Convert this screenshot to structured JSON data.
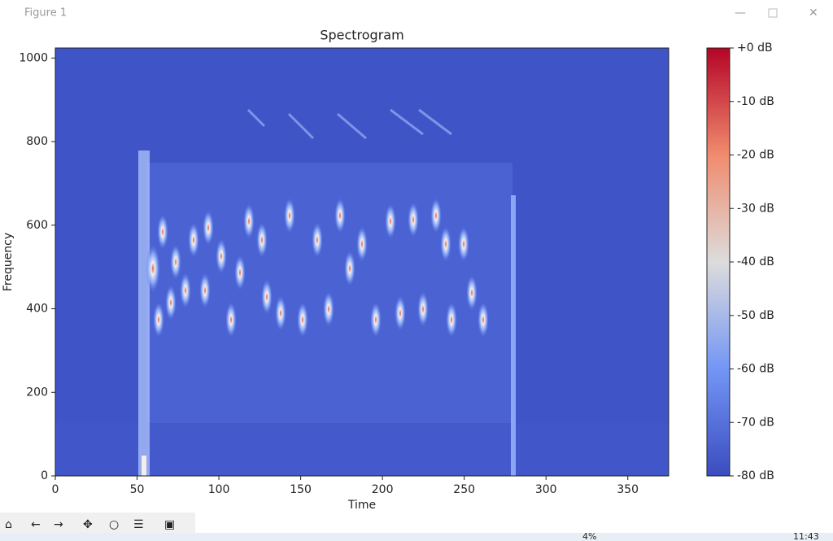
{
  "window": {
    "title": "Figure 1"
  },
  "taskbar": {
    "battery": "4%",
    "clock": "11:43"
  },
  "chart_data": {
    "type": "heatmap",
    "title": "Spectrogram",
    "x_label": "Time",
    "y_label": "Frequency",
    "xlim": [
      0,
      375
    ],
    "xticks": [
      0,
      50,
      100,
      150,
      200,
      250,
      300,
      350
    ],
    "ylim": [
      0,
      1024
    ],
    "yticks": [
      0,
      200,
      400,
      600,
      800,
      1000
    ],
    "colormap": "coolwarm",
    "colorbar": {
      "lim": [
        -80,
        0
      ],
      "ticks": [
        {
          "value": 0,
          "label": "+0 dB"
        },
        {
          "value": -10,
          "label": "-10 dB"
        },
        {
          "value": -20,
          "label": "-20 dB"
        },
        {
          "value": -30,
          "label": "-30 dB"
        },
        {
          "value": -40,
          "label": "-40 dB"
        },
        {
          "value": -50,
          "label": "-50 dB"
        },
        {
          "value": -60,
          "label": "-60 dB"
        },
        {
          "value": -70,
          "label": "-70 dB"
        },
        {
          "value": -80,
          "label": "-80 dB"
        }
      ]
    }
  }
}
